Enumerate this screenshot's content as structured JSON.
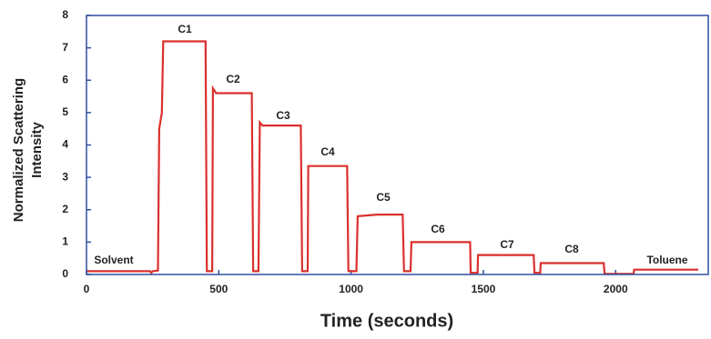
{
  "chart_data": {
    "type": "line",
    "x_label": "Time (seconds)",
    "y_label": "Normalized Scattering Intensity",
    "x": [
      0,
      240,
      245,
      250,
      270,
      275,
      285,
      290,
      450,
      455,
      475,
      478,
      490,
      625,
      630,
      650,
      655,
      665,
      810,
      815,
      836,
      838,
      985,
      990,
      1020,
      1025,
      1100,
      1195,
      1200,
      1225,
      1228,
      1450,
      1452,
      1478,
      1480,
      1690,
      1693,
      1715,
      1717,
      1955,
      1958,
      2068,
      2070,
      2312
    ],
    "series": [
      {
        "name": "Normalized Scattering Intensity",
        "color": "#d9302c",
        "values": [
          0.1,
          0.1,
          0.05,
          0.1,
          0.12,
          4.5,
          5.0,
          7.2,
          7.2,
          0.1,
          0.1,
          5.75,
          5.6,
          5.6,
          0.1,
          0.1,
          4.7,
          4.6,
          4.6,
          0.1,
          0.1,
          3.35,
          3.35,
          0.1,
          0.1,
          1.8,
          1.85,
          1.85,
          0.1,
          0.1,
          1.0,
          1.0,
          0.05,
          0.05,
          0.6,
          0.6,
          0.05,
          0.05,
          0.35,
          0.35,
          0.02,
          0.02,
          0.15,
          0.15
        ]
      }
    ],
    "xlim": [
      0,
      2350
    ],
    "xticks": [
      0,
      500,
      1000,
      1500,
      2000
    ],
    "ylim": [
      0,
      8
    ],
    "yticks": [
      0,
      1,
      2,
      3,
      4,
      5,
      6,
      7,
      8
    ],
    "axis_color": "#2f4f9f",
    "annotations": [
      "Solvent",
      "C1",
      "C2",
      "C3",
      "C4",
      "C5",
      "C6",
      "C7",
      "C8",
      "Toluene"
    ]
  }
}
